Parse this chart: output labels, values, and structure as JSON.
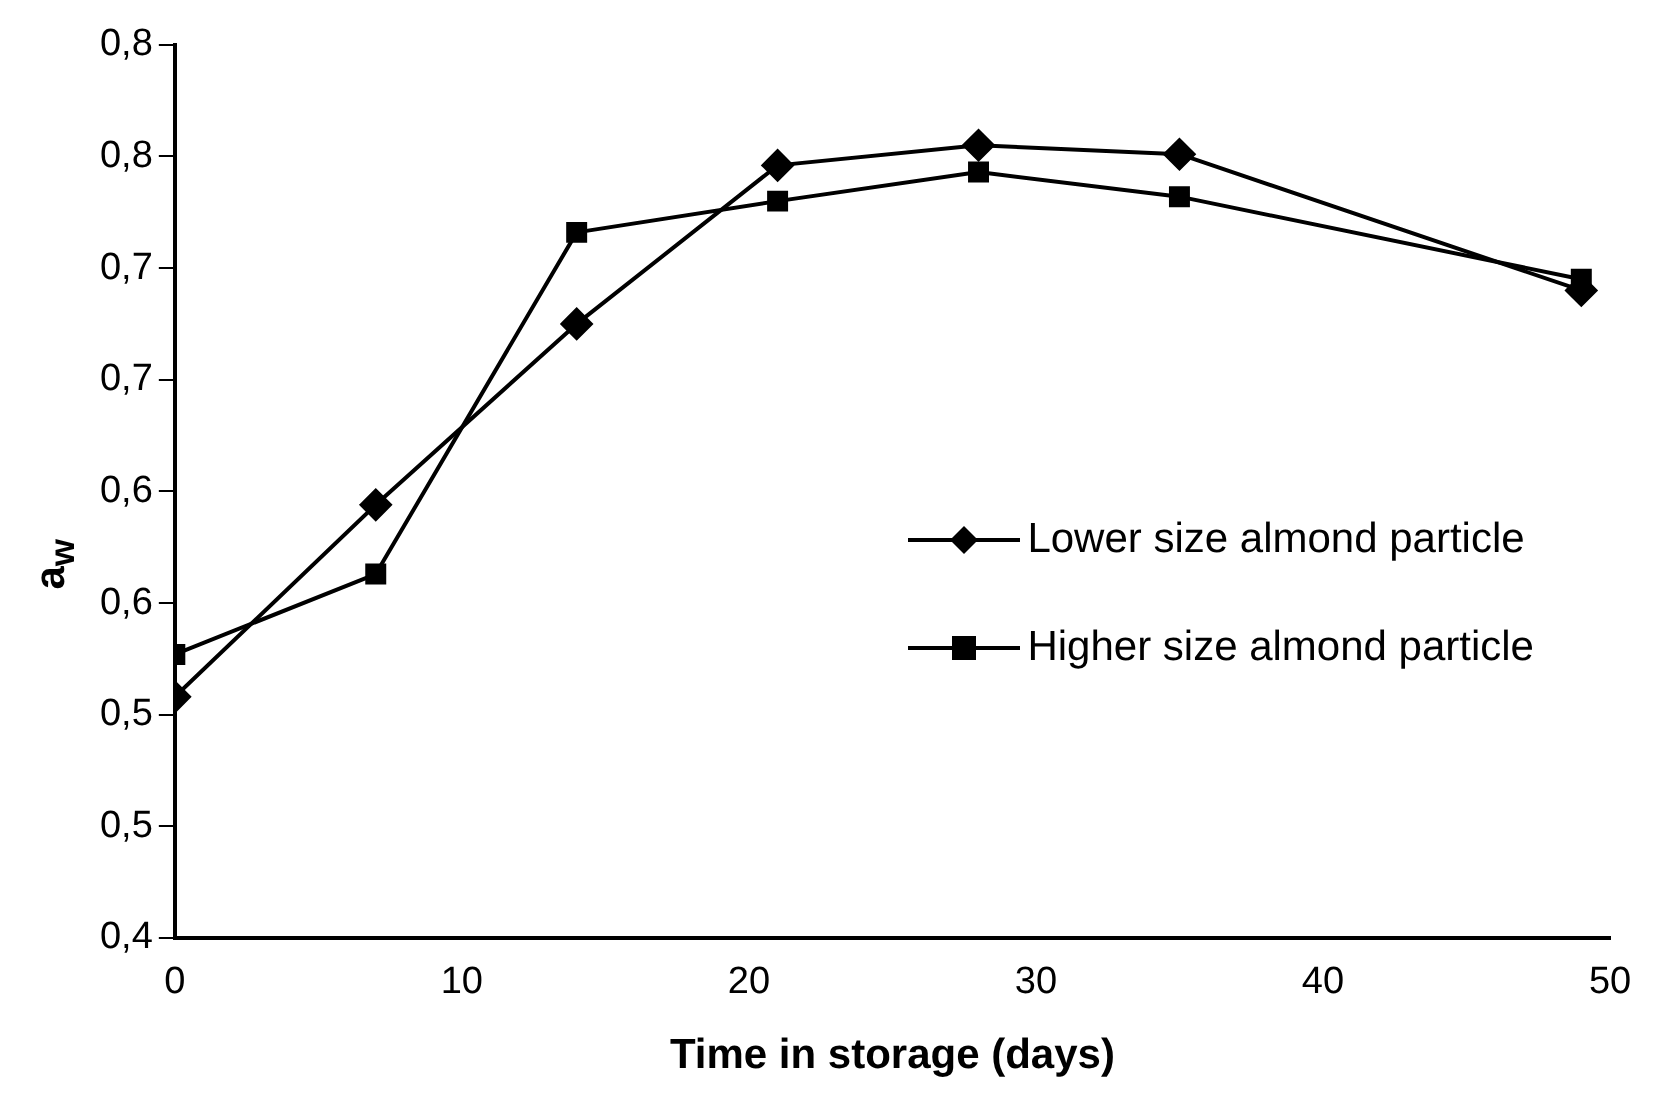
{
  "chart_data": {
    "type": "line",
    "xlabel": "Time in storage (days)",
    "ylabel": "a$_{w}$",
    "x": [
      0,
      7,
      14,
      21,
      28,
      35,
      49
    ],
    "xlim": [
      0,
      50
    ],
    "xticks": [
      0,
      10,
      20,
      30,
      40,
      50
    ],
    "ylim": [
      0.4,
      0.8
    ],
    "yticks": [
      {
        "value": 0.4,
        "label": "0,4"
      },
      {
        "value": 0.45,
        "label": "0,5"
      },
      {
        "value": 0.5,
        "label": "0,5"
      },
      {
        "value": 0.55,
        "label": "0,6"
      },
      {
        "value": 0.6,
        "label": "0,6"
      },
      {
        "value": 0.65,
        "label": "0,7"
      },
      {
        "value": 0.7,
        "label": "0,7"
      },
      {
        "value": 0.75,
        "label": "0,8"
      },
      {
        "value": 0.8,
        "label": "0,8"
      }
    ],
    "grid": false,
    "legend": "right",
    "line_style": "solid",
    "series": [
      {
        "name": "Lower size almond particle",
        "color": "#000000",
        "marker": "diamond",
        "values": [
          0.508,
          0.594,
          0.675,
          0.746,
          0.755,
          0.751,
          0.69
        ]
      },
      {
        "name": "Higher size almond particle",
        "color": "#000000",
        "marker": "square",
        "values": [
          0.527,
          0.563,
          0.716,
          0.73,
          0.743,
          0.732,
          0.695
        ]
      }
    ]
  }
}
